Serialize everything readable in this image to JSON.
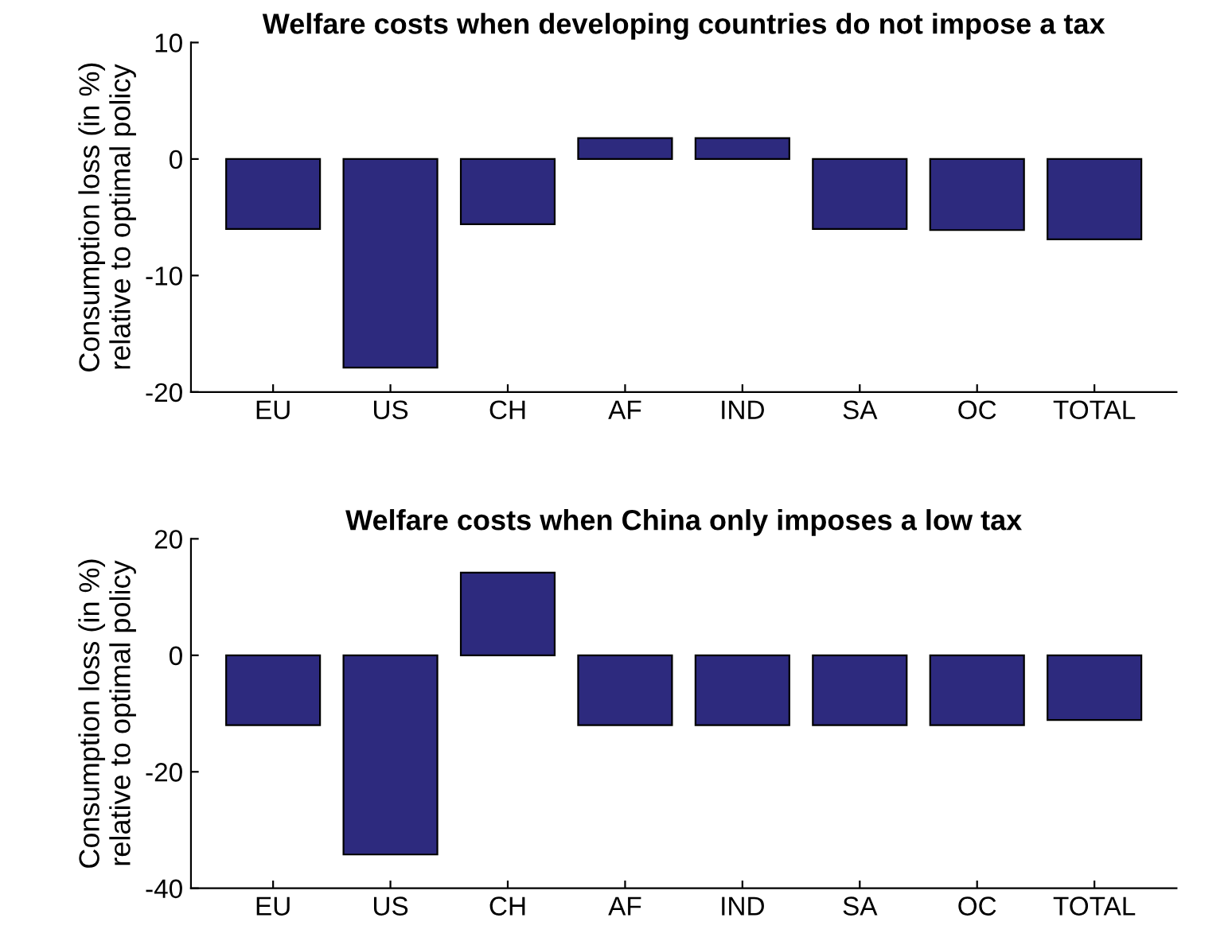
{
  "chart_data": [
    {
      "type": "bar",
      "title": "Welfare costs when developing countries do not impose a tax",
      "ylabel": "Consumption loss (in %)\nrelative to optimal policy",
      "categories": [
        "EU",
        "US",
        "CH",
        "AF",
        "IND",
        "SA",
        "OC",
        "TOTAL"
      ],
      "series": [
        {
          "color": "#2d2a7e",
          "values": [
            -6.0,
            -17.9,
            -5.6,
            1.8,
            1.8,
            -6.0,
            -6.1,
            -6.9
          ]
        }
      ],
      "ylim": [
        -20,
        10
      ],
      "yticks": [
        -20,
        -10,
        0,
        10
      ],
      "grid": false
    },
    {
      "type": "bar",
      "title": "Welfare costs when China only imposes a low tax",
      "ylabel": "Consumption loss (in %)\nrelative to optimal policy",
      "categories": [
        "EU",
        "US",
        "CH",
        "AF",
        "IND",
        "SA",
        "OC",
        "TOTAL"
      ],
      "series": [
        {
          "color": "#2d2a7e",
          "values": [
            -12,
            -34.2,
            14.2,
            -12,
            -12,
            -12,
            -12,
            -11.1
          ]
        }
      ],
      "ylim": [
        -40,
        20
      ],
      "yticks": [
        -40,
        -20,
        0,
        20
      ],
      "grid": false
    }
  ]
}
